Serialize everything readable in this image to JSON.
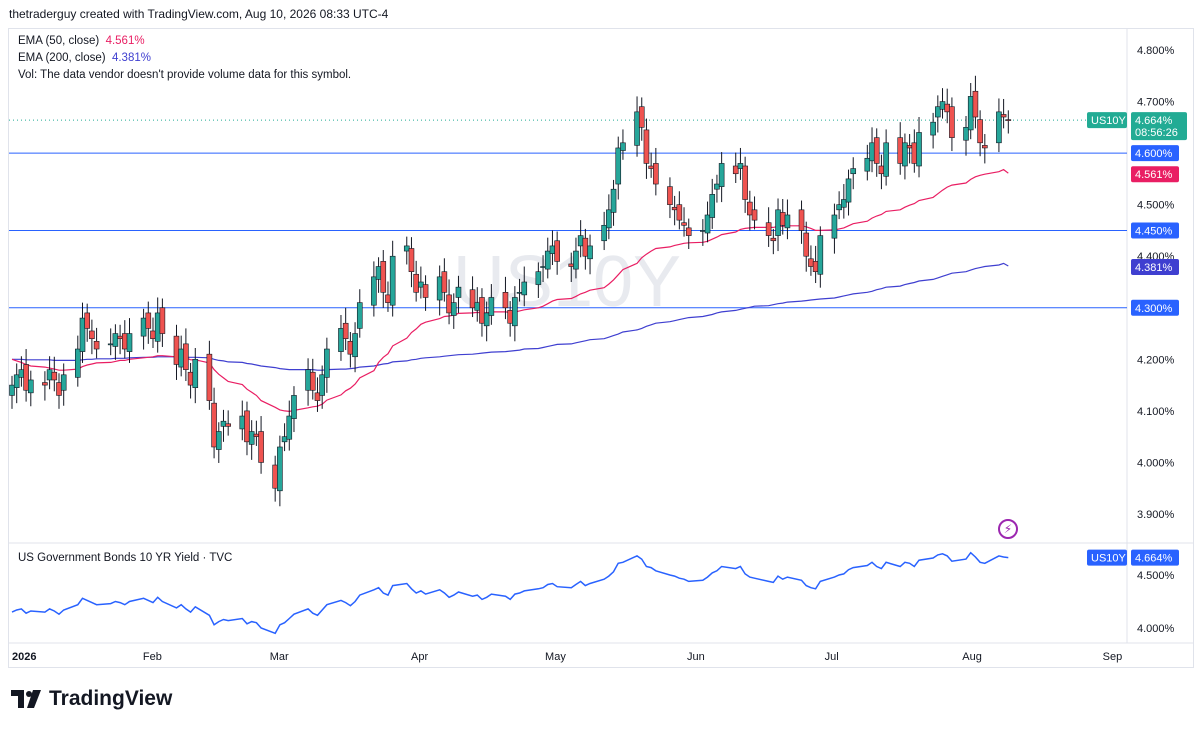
{
  "header": {
    "text": "thetraderguy created with TradingView.com, Aug 10, 2026 08:33 UTC-4"
  },
  "legend": {
    "ema50_label": "EMA (50, close)",
    "ema50_value": "4.561%",
    "ema200_label": "EMA (200, close)",
    "ema200_value": "4.381%",
    "vol_text": "Vol: The data vendor doesn't provide volume data for this symbol."
  },
  "watermark": "US10Y",
  "subpane": {
    "title": "US Government Bonds 10 YR Yield · TVC"
  },
  "brand": {
    "name": "TradingView"
  },
  "colors": {
    "up": "#26a69a",
    "down": "#ef5350",
    "ema50": "#e91e63",
    "ema200": "#3f3fd0",
    "hline": "#2962ff",
    "sub_line": "#2962ff",
    "price_tag": "#22ab94"
  },
  "chart_data": {
    "type": "candlestick",
    "symbol": "US10Y",
    "last_price": "4.664%",
    "countdown": "08:56:26",
    "y_ticks": [
      "4.800%",
      "4.700%",
      "4.600%",
      "4.500%",
      "4.400%",
      "4.300%",
      "4.200%",
      "4.100%",
      "4.000%",
      "3.900%"
    ],
    "y_tick_values": [
      4.8,
      4.7,
      4.6,
      4.5,
      4.4,
      4.3,
      4.2,
      4.1,
      4.0,
      3.9
    ],
    "ylim": [
      3.86,
      4.84
    ],
    "x_ticks": [
      "2026",
      "Feb",
      "Mar",
      "Apr",
      "May",
      "Jun",
      "Jul",
      "Aug",
      "Sep"
    ],
    "x_tick_days": [
      0,
      31,
      59,
      90,
      120,
      151,
      181,
      212,
      243
    ],
    "xlim": [
      0,
      244
    ],
    "horizontal_lines": [
      {
        "value": 4.6,
        "label": "4.600%"
      },
      {
        "value": 4.45,
        "label": "4.450%"
      },
      {
        "value": 4.3,
        "label": "4.300%"
      }
    ],
    "ema50_label": "4.561%",
    "ema200_label": "4.381%",
    "closes": [
      4.15,
      4.17,
      4.18,
      4.14,
      4.16,
      4.15,
      4.18,
      4.16,
      4.13,
      4.17,
      4.22,
      4.28,
      4.26,
      4.24,
      4.22,
      4.23,
      4.25,
      4.24,
      4.22,
      4.25,
      4.28,
      4.26,
      4.24,
      4.29,
      4.25,
      4.19,
      4.22,
      4.18,
      4.15,
      4.2,
      4.12,
      4.03,
      4.06,
      4.08,
      4.07,
      4.09,
      4.04,
      4.06,
      4.05,
      4.0,
      3.95,
      4.03,
      4.05,
      4.09,
      4.13,
      4.18,
      4.14,
      4.12,
      4.17,
      4.22,
      4.26,
      4.24,
      4.21,
      4.25,
      4.31,
      4.36,
      4.38,
      4.33,
      4.31,
      4.4,
      4.42,
      4.37,
      4.33,
      4.35,
      4.32,
      4.36,
      4.33,
      4.29,
      4.31,
      4.34,
      4.3,
      4.31,
      4.27,
      4.29,
      4.32,
      4.3,
      4.27,
      4.32,
      4.33,
      4.35,
      4.37,
      4.38,
      4.41,
      4.42,
      4.39,
      4.38,
      4.41,
      4.44,
      4.4,
      4.42,
      4.46,
      4.49,
      4.53,
      4.61,
      4.62,
      4.68,
      4.65,
      4.58,
      4.57,
      4.54,
      4.5,
      4.49,
      4.47,
      4.46,
      4.44,
      4.45,
      4.48,
      4.52,
      4.54,
      4.58,
      4.56,
      4.58,
      4.51,
      4.48,
      4.47,
      4.44,
      4.43,
      4.49,
      4.46,
      4.48,
      4.45,
      4.4,
      4.38,
      4.37,
      4.44,
      4.48,
      4.5,
      4.51,
      4.55,
      4.57,
      4.59,
      4.62,
      4.58,
      4.56,
      4.62,
      4.58,
      4.62,
      4.61,
      4.58,
      4.64,
      4.66,
      4.69,
      4.7,
      4.68,
      4.63,
      4.65,
      4.71,
      4.67,
      4.62,
      4.61,
      4.68,
      4.67,
      4.664
    ],
    "ema50": [
      4.2,
      4.197,
      4.194,
      4.19,
      4.187,
      4.185,
      4.183,
      4.181,
      4.179,
      4.179,
      4.181,
      4.186,
      4.189,
      4.191,
      4.193,
      4.194,
      4.196,
      4.198,
      4.198,
      4.2,
      4.203,
      4.204,
      4.205,
      4.207,
      4.207,
      4.205,
      4.205,
      4.203,
      4.199,
      4.199,
      4.193,
      4.18,
      4.171,
      4.164,
      4.157,
      4.151,
      4.142,
      4.136,
      4.13,
      4.12,
      4.107,
      4.102,
      4.1,
      4.099,
      4.101,
      4.106,
      4.108,
      4.109,
      4.113,
      4.121,
      4.131,
      4.139,
      4.144,
      4.152,
      4.164,
      4.178,
      4.194,
      4.204,
      4.211,
      4.226,
      4.241,
      4.252,
      4.259,
      4.268,
      4.272,
      4.279,
      4.283,
      4.284,
      4.286,
      4.289,
      4.29,
      4.291,
      4.29,
      4.29,
      4.292,
      4.292,
      4.291,
      4.292,
      4.294,
      4.296,
      4.3,
      4.303,
      4.308,
      4.313,
      4.316,
      4.318,
      4.322,
      4.327,
      4.33,
      4.334,
      4.339,
      4.346,
      4.354,
      4.364,
      4.374,
      4.386,
      4.397,
      4.404,
      4.41,
      4.415,
      4.418,
      4.421,
      4.423,
      4.425,
      4.426,
      4.427,
      4.429,
      4.433,
      4.437,
      4.442,
      4.447,
      4.452,
      4.454,
      4.455,
      4.456,
      4.456,
      4.456,
      4.458,
      4.458,
      4.459,
      4.459,
      4.457,
      4.454,
      4.45,
      4.45,
      4.451,
      4.453,
      4.455,
      4.459,
      4.463,
      4.468,
      4.474,
      4.478,
      4.481,
      4.487,
      4.49,
      4.495,
      4.499,
      4.502,
      4.508,
      4.514,
      4.521,
      4.528,
      4.534,
      4.538,
      4.542,
      4.549,
      4.554,
      4.557,
      4.559,
      4.564,
      4.568,
      4.561
    ],
    "ema200": [
      4.2,
      4.2,
      4.2,
      4.199,
      4.199,
      4.199,
      4.199,
      4.198,
      4.198,
      4.198,
      4.198,
      4.199,
      4.2,
      4.2,
      4.201,
      4.201,
      4.202,
      4.202,
      4.202,
      4.203,
      4.204,
      4.204,
      4.204,
      4.205,
      4.205,
      4.205,
      4.205,
      4.204,
      4.204,
      4.204,
      4.203,
      4.2,
      4.198,
      4.197,
      4.195,
      4.194,
      4.192,
      4.191,
      4.189,
      4.187,
      4.184,
      4.182,
      4.181,
      4.18,
      4.18,
      4.18,
      4.18,
      4.179,
      4.179,
      4.18,
      4.181,
      4.181,
      4.182,
      4.183,
      4.185,
      4.187,
      4.189,
      4.191,
      4.192,
      4.195,
      4.197,
      4.199,
      4.2,
      4.202,
      4.203,
      4.205,
      4.206,
      4.207,
      4.208,
      4.209,
      4.21,
      4.211,
      4.212,
      4.213,
      4.214,
      4.215,
      4.216,
      4.217,
      4.218,
      4.22,
      4.221,
      4.223,
      4.225,
      4.227,
      4.229,
      4.23,
      4.232,
      4.234,
      4.236,
      4.238,
      4.24,
      4.243,
      4.246,
      4.249,
      4.253,
      4.257,
      4.26,
      4.264,
      4.267,
      4.27,
      4.273,
      4.275,
      4.277,
      4.279,
      4.281,
      4.283,
      4.285,
      4.287,
      4.29,
      4.292,
      4.295,
      4.297,
      4.299,
      4.301,
      4.303,
      4.304,
      4.306,
      4.308,
      4.309,
      4.311,
      4.313,
      4.314,
      4.315,
      4.316,
      4.317,
      4.319,
      4.321,
      4.323,
      4.325,
      4.327,
      4.33,
      4.332,
      4.335,
      4.337,
      4.34,
      4.342,
      4.345,
      4.347,
      4.349,
      4.352,
      4.355,
      4.358,
      4.361,
      4.364,
      4.367,
      4.37,
      4.373,
      4.376,
      4.378,
      4.38,
      4.383,
      4.386,
      4.381
    ],
    "subpane": {
      "type": "line",
      "series_label": "US10Y",
      "last_value": "4.664%",
      "y_ticks": [
        "4.500%",
        "4.000%"
      ],
      "y_tick_values": [
        4.5,
        4.0
      ],
      "ylim": [
        3.9,
        4.75
      ]
    }
  }
}
